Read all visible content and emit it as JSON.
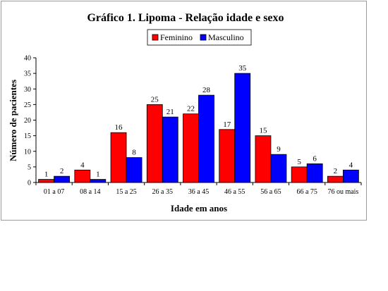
{
  "chart_data": {
    "type": "bar",
    "title": "Gráfico 1. Lipoma - Relação idade e sexo",
    "xlabel": "Idade em anos",
    "ylabel": "Número de pacientes",
    "ylim": [
      0,
      40
    ],
    "yticks": [
      0,
      5,
      10,
      15,
      20,
      25,
      30,
      35,
      40
    ],
    "categories": [
      "01 a 07",
      "08 a 14",
      "15 a 25",
      "26 a 35",
      "36 a 45",
      "46 a 55",
      "56 a 65",
      "66 a 75",
      "76 ou mais"
    ],
    "series": [
      {
        "name": "Feminino",
        "color": "#ff0000",
        "values": [
          1,
          4,
          16,
          25,
          22,
          17,
          15,
          5,
          2
        ]
      },
      {
        "name": "Masculino",
        "color": "#0000ff",
        "values": [
          2,
          1,
          8,
          21,
          28,
          35,
          9,
          6,
          4
        ]
      }
    ],
    "legend": "top-right",
    "grid": false
  }
}
